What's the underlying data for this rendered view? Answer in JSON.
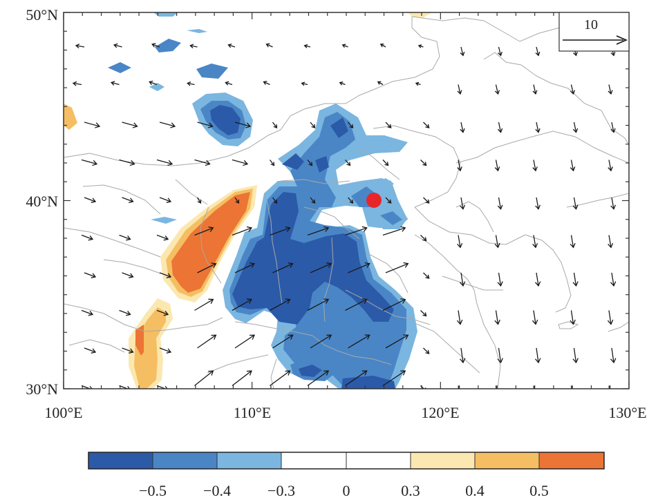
{
  "map": {
    "lon_range": [
      100,
      130
    ],
    "lat_range": [
      30,
      50
    ],
    "lon_ticks": [
      {
        "value": 100,
        "label": "100°E"
      },
      {
        "value": 110,
        "label": "110°E"
      },
      {
        "value": 120,
        "label": "120°E"
      },
      {
        "value": 130,
        "label": "130°E"
      }
    ],
    "lat_ticks": [
      {
        "value": 50,
        "label": "50°N"
      },
      {
        "value": 40,
        "label": "40°N"
      },
      {
        "value": 30,
        "label": "30°N"
      }
    ],
    "reference_vector": {
      "magnitude": 10,
      "label": "10"
    },
    "marker": {
      "lon": 116.4,
      "lat": 40.0,
      "color": "#e8262a"
    },
    "colors": {
      "neg_strong": "#2b5aa8",
      "neg_mid": "#4a86c6",
      "neg_weak": "#7ab6e0",
      "pos_weak": "#fbe8b0",
      "pos_mid": "#f5be62",
      "pos_strong": "#ec7434",
      "border": "#a8a8a8",
      "arrow": "#1a1a1a"
    }
  },
  "colorbar": {
    "colors": [
      "#2b5aa8",
      "#4a86c6",
      "#7ab6e0",
      "#ffffff",
      "#ffffff",
      "#fbe8b0",
      "#f5be62",
      "#ec7434"
    ],
    "labels": [
      "−0.5",
      "−0.4",
      "−0.3",
      "0",
      "0.3",
      "0.4",
      "0.5"
    ]
  }
}
